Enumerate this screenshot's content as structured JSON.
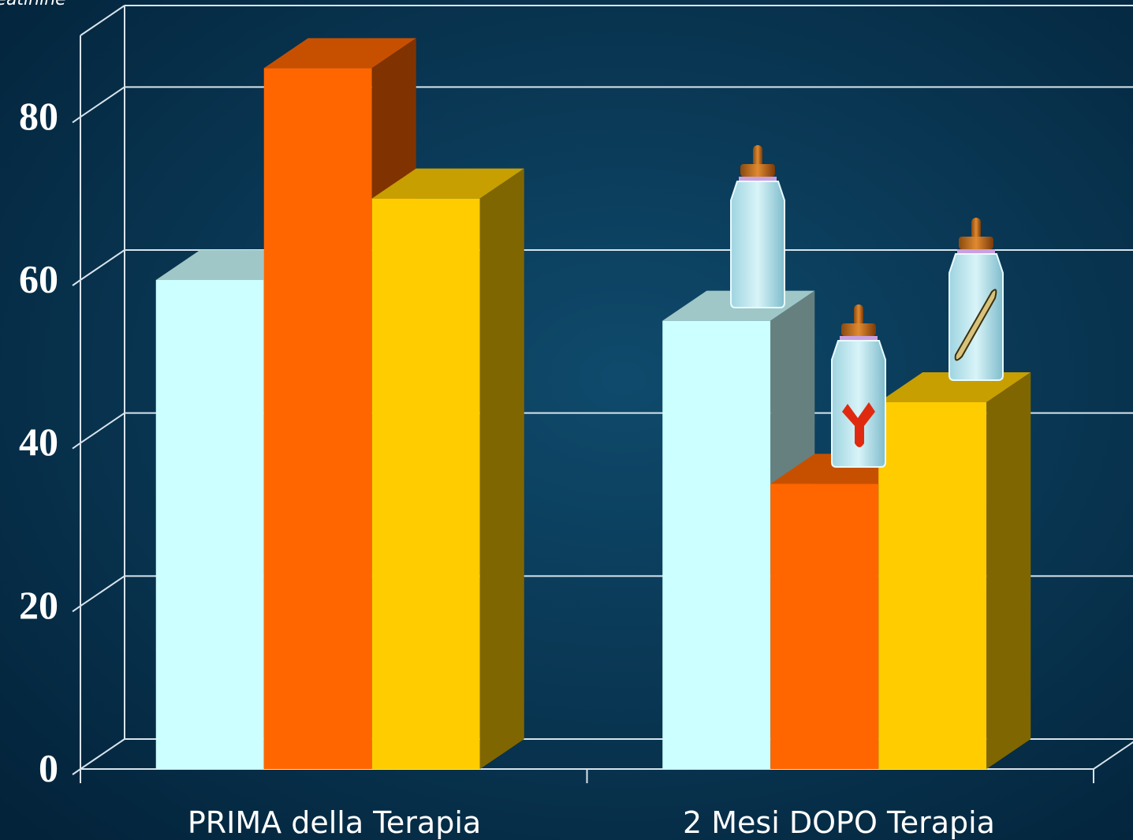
{
  "chart_data": {
    "type": "bar3d",
    "title": "Creatinine",
    "categories": [
      "PRIMA della Terapia",
      "2 Mesi DOPO Terapia"
    ],
    "series": [
      {
        "color": "#ccffff",
        "values": [
          60,
          55
        ]
      },
      {
        "color": "#ff6600",
        "values": [
          86,
          35
        ]
      },
      {
        "color": "#ffcc00",
        "values": [
          70,
          45
        ]
      }
    ],
    "ylim": [
      0,
      90
    ],
    "yticks": [
      0,
      20,
      40,
      60,
      80
    ],
    "grid": true
  }
}
